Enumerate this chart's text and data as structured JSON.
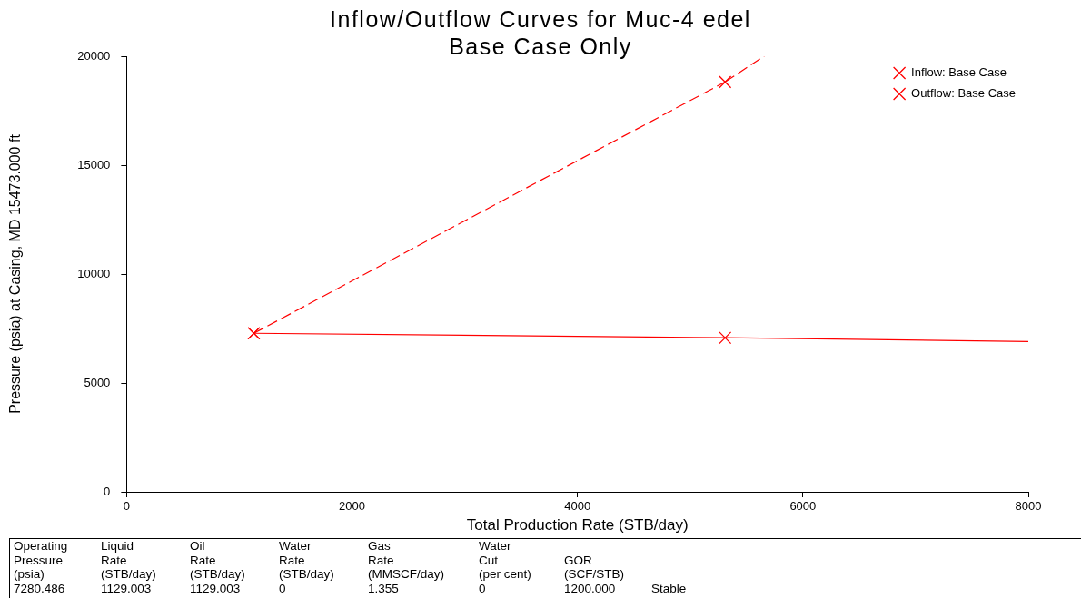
{
  "chart_data": {
    "type": "line",
    "title": "Inflow/Outflow Curves for Muc-4 edel",
    "subtitle": "Base Case Only",
    "xlabel": "Total Production Rate (STB/day)",
    "ylabel": "Pressure (psia) at Casing, MD 15473.000 ft",
    "xlim": [
      0,
      8000
    ],
    "xticks": [
      0,
      2000,
      4000,
      6000,
      8000
    ],
    "ylim": [
      0,
      20000
    ],
    "yticks": [
      0,
      5000,
      10000,
      15000,
      20000
    ],
    "grid": false,
    "legend": "top right",
    "series": [
      {
        "name": "Inflow: Base Case",
        "color": "#ff0000",
        "line_style": "solid",
        "marker": "cross",
        "x": [
          1129.003,
          5310
        ],
        "values": [
          7280.486,
          7074
        ]
      },
      {
        "name": "Outflow: Base Case",
        "color": "#ff0000",
        "line_style": "dashed",
        "marker": "cross",
        "x": [
          1129.003,
          5310
        ],
        "values": [
          7280.486,
          18820
        ]
      },
      {
        "color": "#ff0000",
        "line_style": "solid",
        "marker": "none",
        "x": [
          5310,
          8000
        ],
        "values": [
          7074,
          6905
        ]
      },
      {
        "color": "#ff0000",
        "line_style": "dashed",
        "marker": "none",
        "x": [
          5310,
          5656
        ],
        "values": [
          18820,
          20000
        ]
      }
    ],
    "annotations": [
      "Operating\nPressure\n(psia)\n7280.486",
      "Liquid\nRate\n(STB/day)\n1129.003",
      "Oil\nRate\n(STB/day)\n1129.003",
      "Water\nRate\n(STB/day)\n0",
      "Gas\nRate\n(MMSCF/day)\n1.355",
      "Water\nCut\n(per cent)\n0",
      "\nGOR\n(SCF/STB)\n1200.000",
      "\n\n\nStable"
    ]
  }
}
